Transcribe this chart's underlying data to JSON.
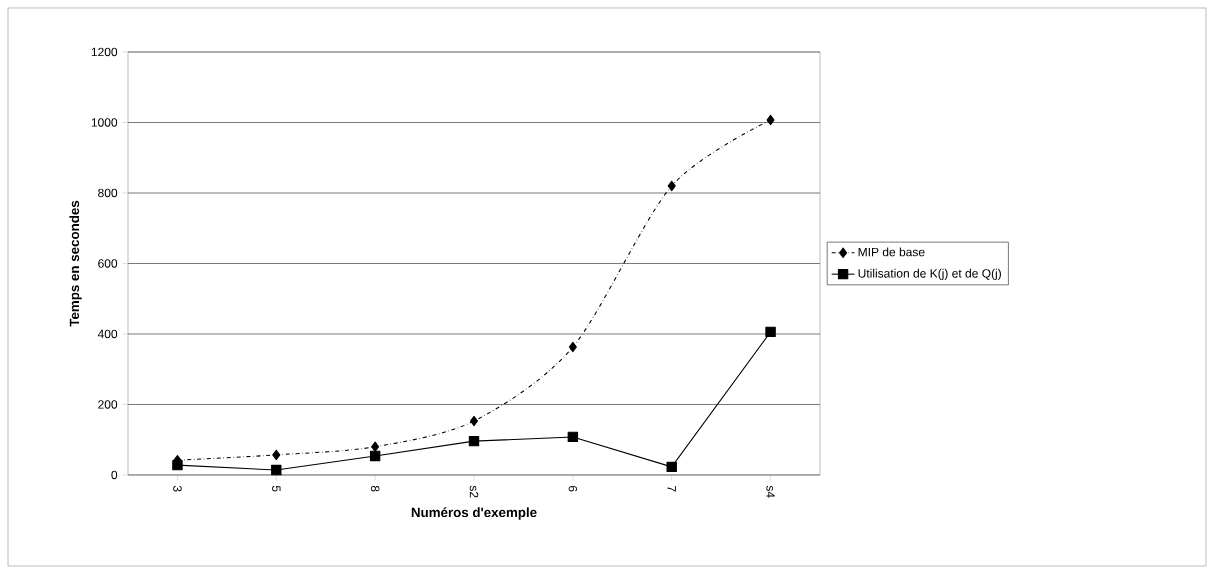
{
  "chart_data": {
    "type": "line",
    "xlabel": "Numéros d'exemple",
    "ylabel": "Temps en secondes",
    "categories": [
      "3",
      "5",
      "8",
      "s2",
      "6",
      "7",
      "s4"
    ],
    "series": [
      {
        "name": "MIP de base",
        "color": "#000000",
        "values": [
          42,
          57,
          80,
          153,
          363,
          820,
          1007
        ],
        "marker": "diamond",
        "line_style": "dashed"
      },
      {
        "name": "Utilisation de K(j) et de Q(j)",
        "color": "#000000",
        "values": [
          28,
          14,
          54,
          96,
          108,
          23,
          406
        ],
        "marker": "square",
        "line_style": "solid"
      }
    ],
    "ylim": [
      0,
      1200
    ],
    "yticks": [
      0,
      200,
      400,
      600,
      800,
      1000,
      1200
    ],
    "grid": "y",
    "legend": "right"
  }
}
